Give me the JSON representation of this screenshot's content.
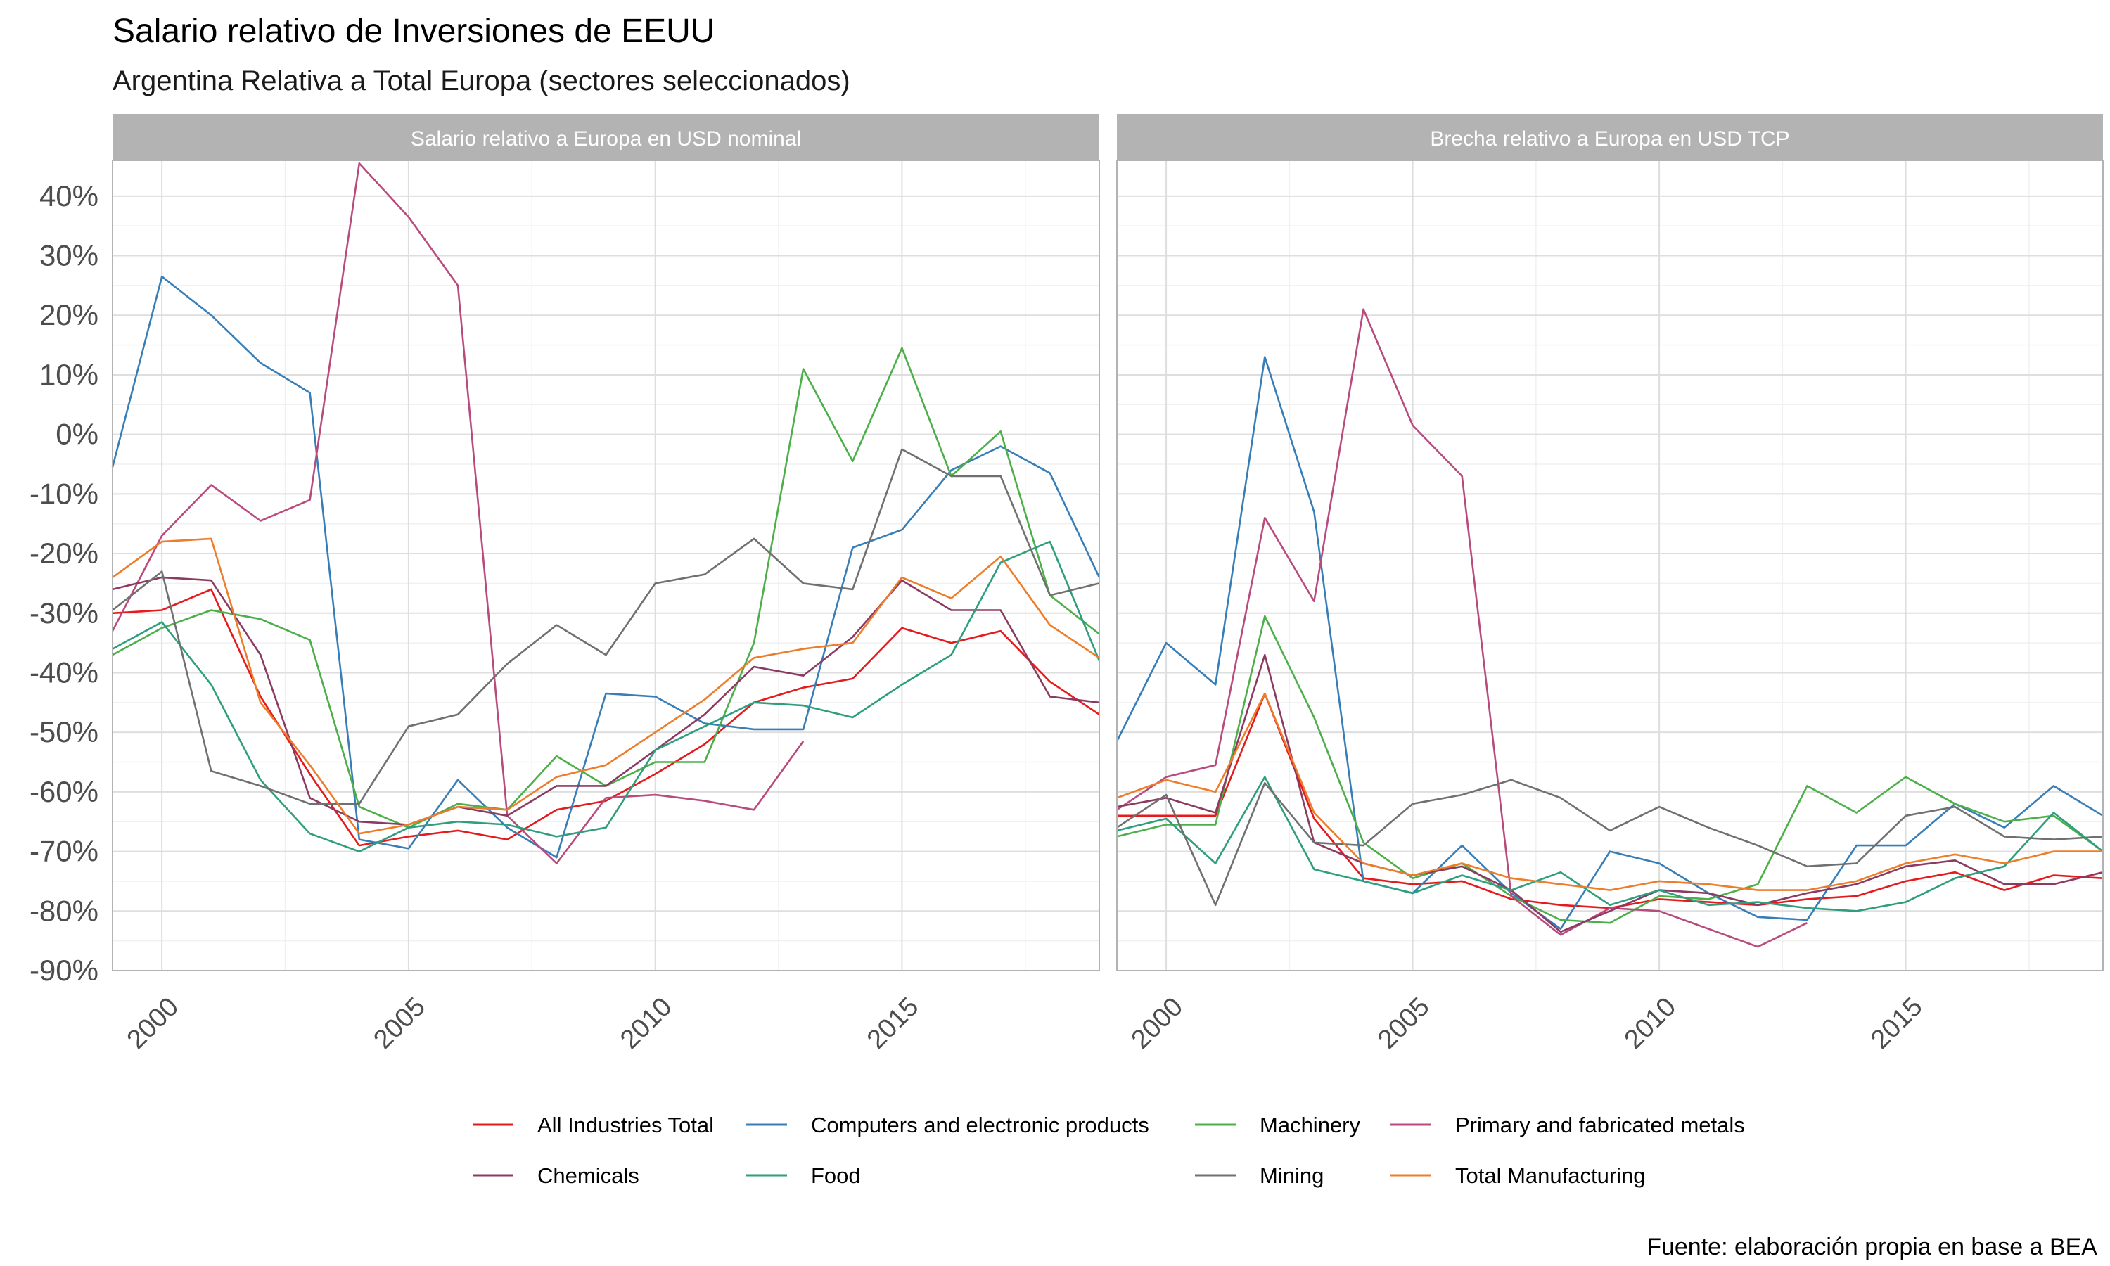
{
  "title": "Salario relativo de Inversiones de EEUU",
  "subtitle": "Argentina Relativa a Total Europa (sectores seleccionados)",
  "caption": "Fuente: elaboración propia en base a BEA",
  "colors": {
    "All Industries Total": "#e41a1c",
    "Computers and electronic products": "#377eb8",
    "Machinery": "#4daf4a",
    "Primary and fabricated metals": "#b94a7e",
    "Chemicals": "#8b3a62",
    "Food": "#2e9e7e",
    "Mining": "#707070",
    "Total Manufacturing": "#ee7d2a"
  },
  "chart_data": [
    {
      "type": "line",
      "panel_title": "Salario relativo a Europa en USD nominal",
      "x": [
        1999,
        2000,
        2001,
        2002,
        2003,
        2004,
        2005,
        2006,
        2007,
        2008,
        2009,
        2010,
        2011,
        2012,
        2013,
        2014,
        2015,
        2016,
        2017,
        2018,
        2019
      ],
      "xlim": [
        1999,
        2019
      ],
      "xticks": [
        2000,
        2005,
        2010,
        2015
      ],
      "ylim": [
        -90,
        46
      ],
      "yticks": [
        -90,
        -80,
        -70,
        -60,
        -50,
        -40,
        -30,
        -20,
        -10,
        0,
        10,
        20,
        30,
        40
      ],
      "ytick_labels": [
        "-90%",
        "-80%",
        "-70%",
        "-60%",
        "-50%",
        "-40%",
        "-30%",
        "-20%",
        "-10%",
        "0%",
        "10%",
        "20%",
        "30%",
        "40%"
      ],
      "grid": true,
      "series": [
        {
          "name": "All Industries Total",
          "values": [
            -30,
            -29.5,
            -26,
            -44,
            -57,
            -69,
            -67.5,
            -66.5,
            -68,
            -63,
            -61.5,
            -57,
            -52,
            -45,
            -42.5,
            -41,
            -32.5,
            -35,
            -33,
            -41.5,
            -47
          ]
        },
        {
          "name": "Computers and electronic products",
          "values": [
            -5.5,
            26.5,
            20,
            12,
            7,
            -68,
            -69.5,
            -58,
            -66,
            -71,
            -43.5,
            -44,
            -48.5,
            -49.5,
            -49.5,
            -19,
            -16,
            -6,
            -2,
            -6.5,
            -24
          ]
        },
        {
          "name": "Machinery",
          "values": [
            -37,
            -32.5,
            -29.5,
            -31,
            -34.5,
            -62.5,
            -66,
            -62,
            -63,
            -54,
            -59,
            -55,
            -55,
            -35,
            11,
            -4.5,
            14.5,
            -7,
            0.5,
            -27,
            -33.5
          ]
        },
        {
          "name": "Primary and fabricated metals",
          "values": [
            -33,
            -17,
            -8.5,
            -14.5,
            -11,
            45.5,
            36.5,
            25,
            -64,
            -72,
            -61,
            -60.5,
            -61.5,
            -63,
            -51.5,
            null,
            null,
            null,
            null,
            null,
            null
          ]
        },
        {
          "name": "Chemicals",
          "values": [
            -26,
            -24,
            -24.5,
            -37,
            -61,
            -65,
            -65.5,
            -62.5,
            -64,
            -59,
            -59,
            -53,
            -47,
            -39,
            -40.5,
            -34,
            -24.5,
            -29.5,
            -29.5,
            -44,
            -45
          ]
        },
        {
          "name": "Food",
          "values": [
            -36,
            -31.5,
            -42,
            -58,
            -67,
            -70,
            -66,
            -65,
            -65.5,
            -67.5,
            -66,
            -53,
            -49,
            -45,
            -45.5,
            -47.5,
            -42,
            -37,
            -21.5,
            -18,
            -38
          ]
        },
        {
          "name": "Mining",
          "values": [
            -29.5,
            -23,
            -56.5,
            -59,
            -62,
            -62,
            -49,
            -47,
            -38.5,
            -32,
            -37,
            -25,
            -23.5,
            -17.5,
            -25,
            -26,
            -2.5,
            -7,
            -7,
            -27,
            -25
          ]
        },
        {
          "name": "Total Manufacturing",
          "values": [
            -24,
            -18,
            -17.5,
            -45,
            -55.5,
            -67,
            -65.5,
            -62.5,
            -63,
            -57.5,
            -55.5,
            -50,
            -44.5,
            -37.5,
            -36,
            -35,
            -24,
            -27.5,
            -20.5,
            -32,
            -37.5
          ]
        }
      ]
    },
    {
      "type": "line",
      "panel_title": "Brecha relativo a Europa en USD TCP",
      "x": [
        1999,
        2000,
        2001,
        2002,
        2003,
        2004,
        2005,
        2006,
        2007,
        2008,
        2009,
        2010,
        2011,
        2012,
        2013,
        2014,
        2015,
        2016,
        2017,
        2018,
        2019
      ],
      "xlim": [
        1999,
        2019
      ],
      "xticks": [
        2000,
        2005,
        2010,
        2015
      ],
      "ylim": [
        -90,
        46
      ],
      "grid": true,
      "series": [
        {
          "name": "All Industries Total",
          "values": [
            -64,
            -64,
            -64,
            -43.5,
            -64.5,
            -74.5,
            -75.5,
            -75,
            -78,
            -79,
            -79.5,
            -78,
            -78.5,
            -79,
            -78,
            -77.5,
            -75,
            -73.5,
            -76.5,
            -74,
            -74.5
          ]
        },
        {
          "name": "Computers and electronic products",
          "values": [
            -51.5,
            -35,
            -42,
            13,
            -13,
            -75,
            -77,
            -69,
            -77,
            -83,
            -70,
            -72,
            -77,
            -81,
            -81.5,
            -69,
            -69,
            -62,
            -66,
            -59,
            -64
          ]
        },
        {
          "name": "Machinery",
          "values": [
            -67.5,
            -65.5,
            -65.5,
            -30.5,
            -47.5,
            -68.5,
            -74.5,
            -72,
            -77.5,
            -81.5,
            -82,
            -77.5,
            -78,
            -75.5,
            -59,
            -63.5,
            -57.5,
            -62,
            -65,
            -64,
            -70
          ]
        },
        {
          "name": "Primary and fabricated metals",
          "values": [
            -63,
            -57.5,
            -55.5,
            -14,
            -28,
            21,
            1.5,
            -7,
            -77.5,
            -84,
            -79.5,
            -80,
            -83,
            -86,
            -82,
            null,
            null,
            null,
            null,
            null,
            null
          ]
        },
        {
          "name": "Chemicals",
          "values": [
            -62.5,
            -61,
            -63.5,
            -37,
            -68.5,
            -72,
            -74,
            -72.5,
            -76.5,
            -83.5,
            -80,
            -76.5,
            -77,
            -79,
            -77,
            -75.5,
            -72.5,
            -71.5,
            -75.5,
            -75.5,
            -73.5
          ]
        },
        {
          "name": "Food",
          "values": [
            -66.5,
            -64.5,
            -72,
            -57.5,
            -73,
            -75,
            -77,
            -74,
            -76.5,
            -73.5,
            -79,
            -76.5,
            -79,
            -78.5,
            -79.5,
            -80,
            -78.5,
            -74.5,
            -72.5,
            -63.5,
            -70
          ]
        },
        {
          "name": "Mining",
          "values": [
            -66,
            -60.5,
            -79,
            -58.5,
            -68.5,
            -69,
            -62,
            -60.5,
            -58,
            -61,
            -66.5,
            -62.5,
            -66,
            -69,
            -72.5,
            -72,
            -64,
            -62.5,
            -67.5,
            -68,
            -67.5
          ]
        },
        {
          "name": "Total Manufacturing",
          "values": [
            -61,
            -58,
            -60,
            -43.5,
            -63.5,
            -72,
            -74,
            -72,
            -74.5,
            -75.5,
            -76.5,
            -75,
            -75.5,
            -76.5,
            -76.5,
            -75,
            -72,
            -70.5,
            -72,
            -70,
            -70
          ]
        }
      ]
    }
  ],
  "legend": {
    "position": "bottom",
    "items": [
      "All Industries Total",
      "Computers and electronic products",
      "Machinery",
      "Primary and fabricated metals",
      "Chemicals",
      "Food",
      "Mining",
      "Total Manufacturing"
    ]
  }
}
